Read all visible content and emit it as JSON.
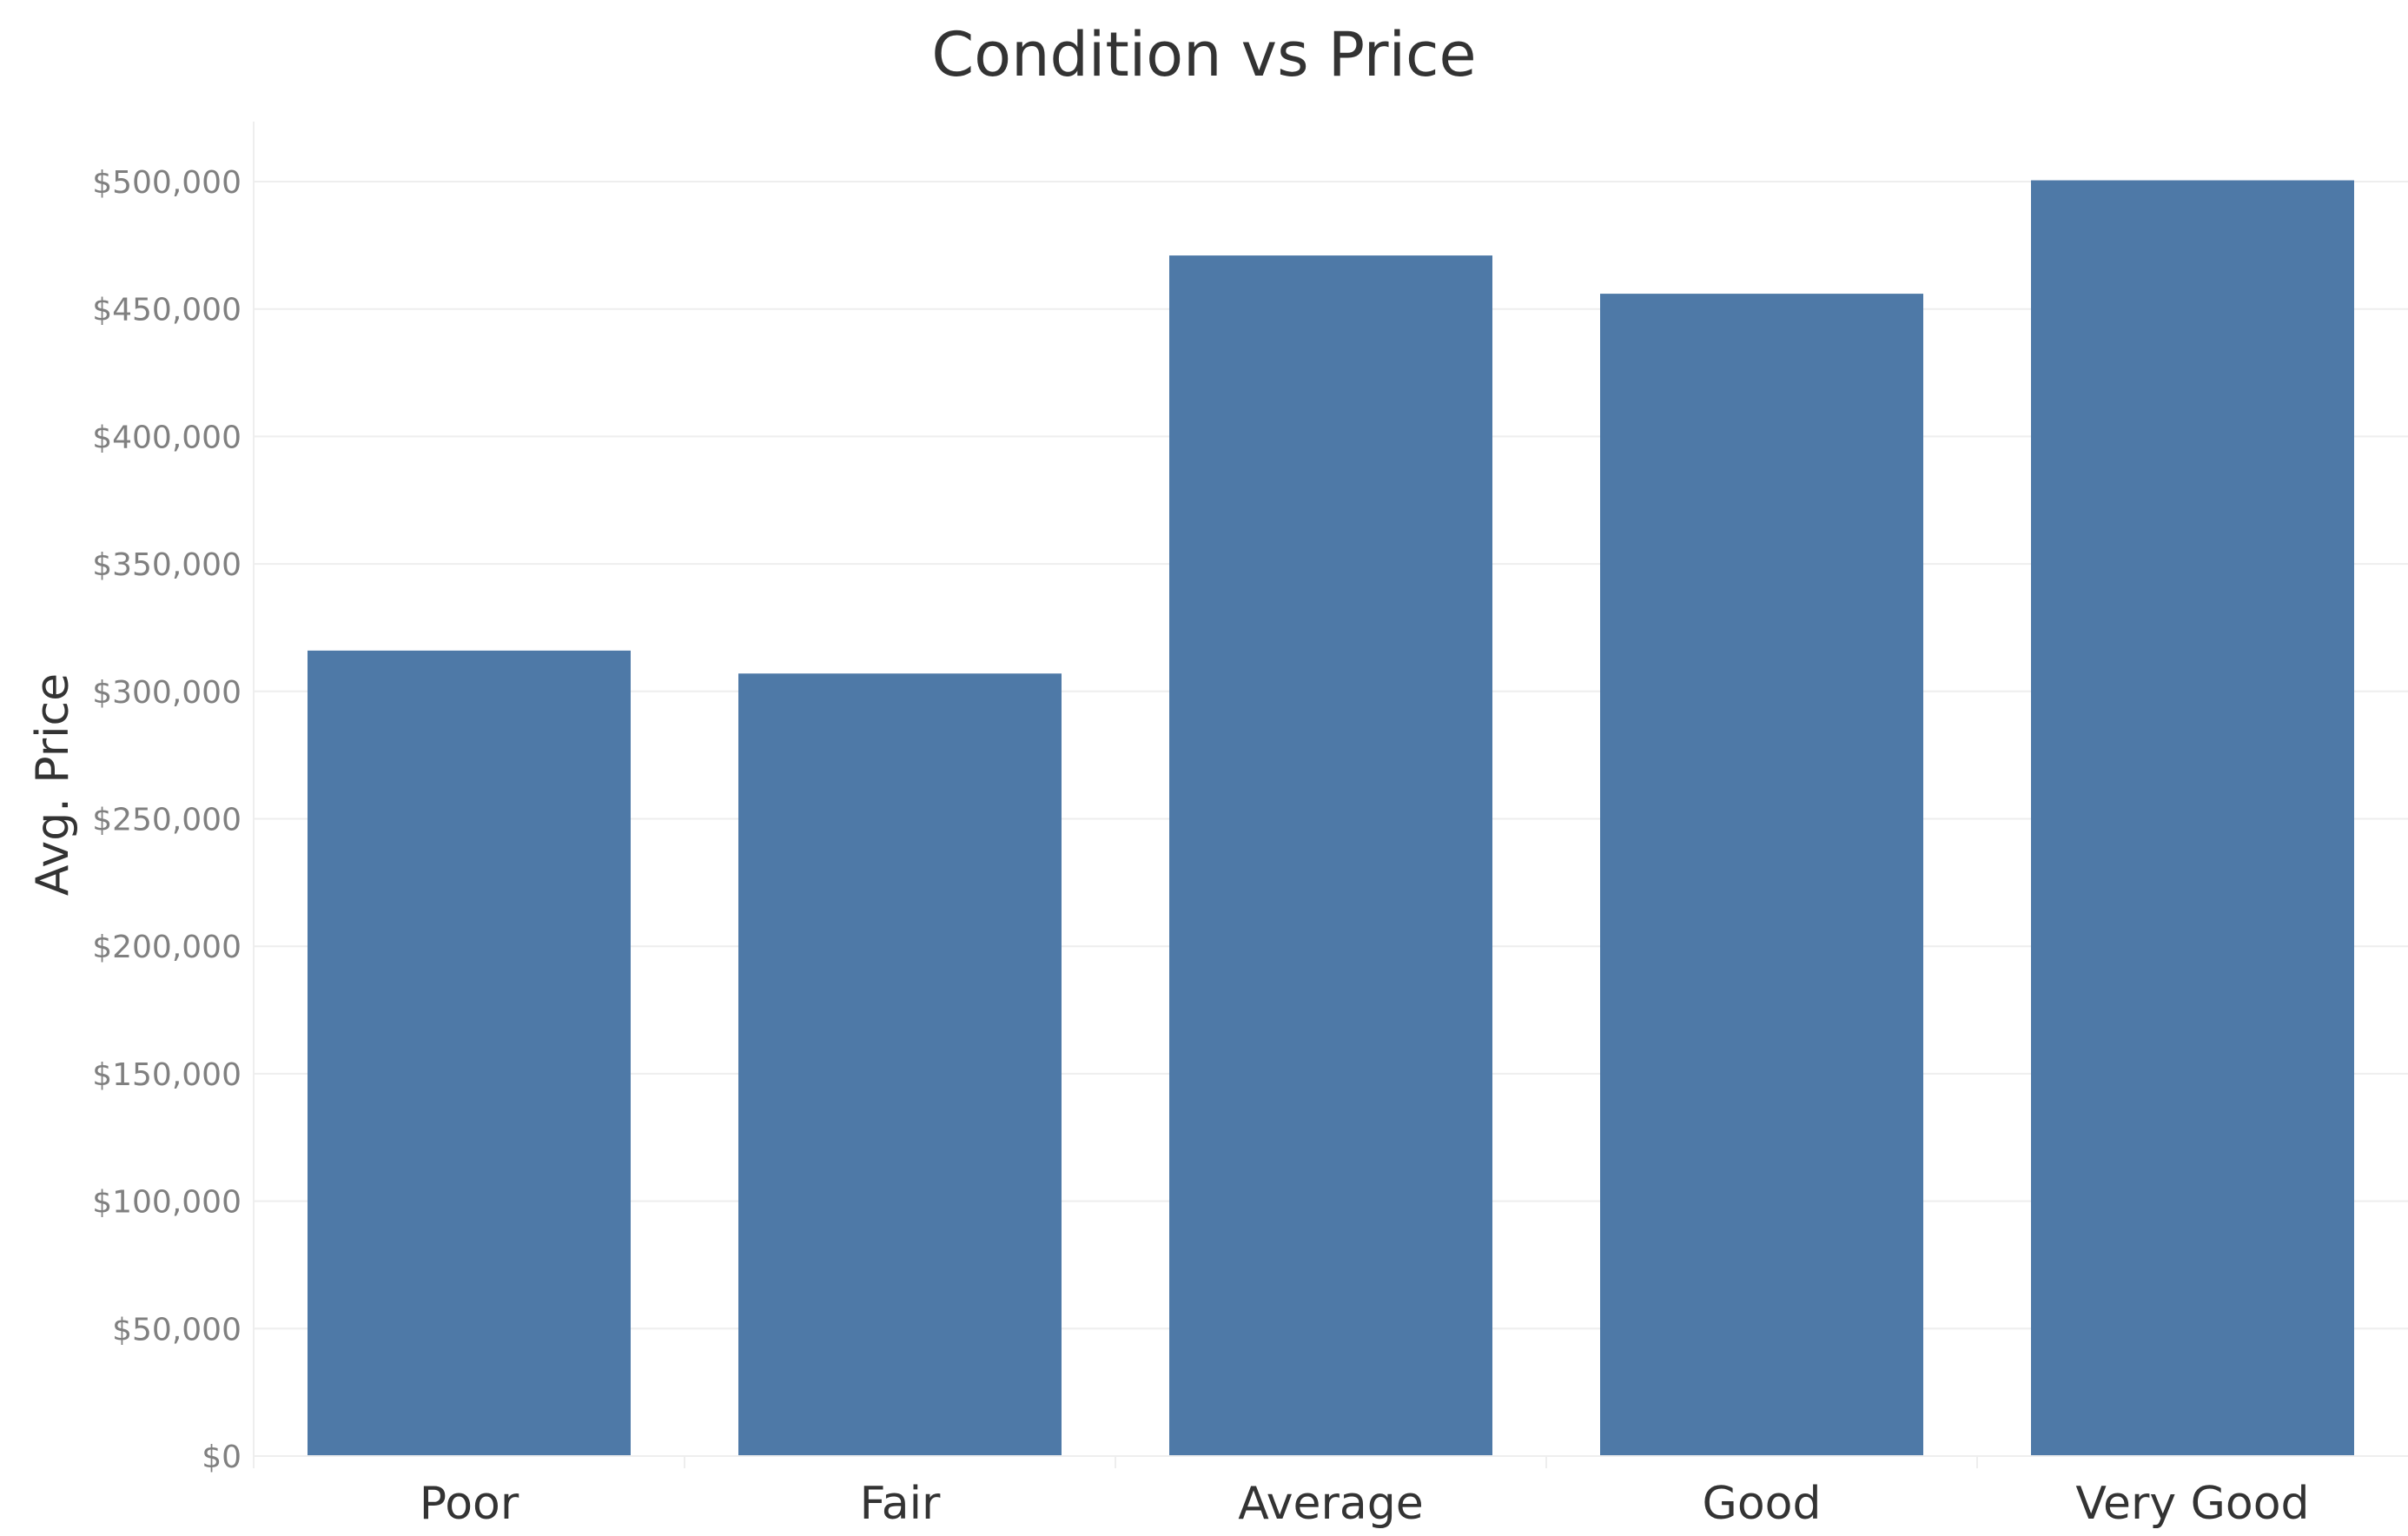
{
  "chart_data": {
    "type": "bar",
    "title": "Condition vs Price",
    "xlabel": "",
    "ylabel": "Avg. Price",
    "categories": [
      "Poor",
      "Fair",
      "Average",
      "Good",
      "Very Good"
    ],
    "values": [
      316000,
      307000,
      471000,
      456000,
      500500
    ],
    "ylim": [
      0,
      500000
    ],
    "yticks": [
      0,
      50000,
      100000,
      150000,
      200000,
      250000,
      300000,
      350000,
      400000,
      450000,
      500000
    ],
    "ytick_labels": [
      "$0",
      "$50,000",
      "$100,000",
      "$150,000",
      "$200,000",
      "$250,000",
      "$300,000",
      "$350,000",
      "$400,000",
      "$450,000",
      "$500,000"
    ],
    "grid": "horizontal",
    "bar_color": "#4e79a7",
    "grid_color": "#eeeeee"
  }
}
